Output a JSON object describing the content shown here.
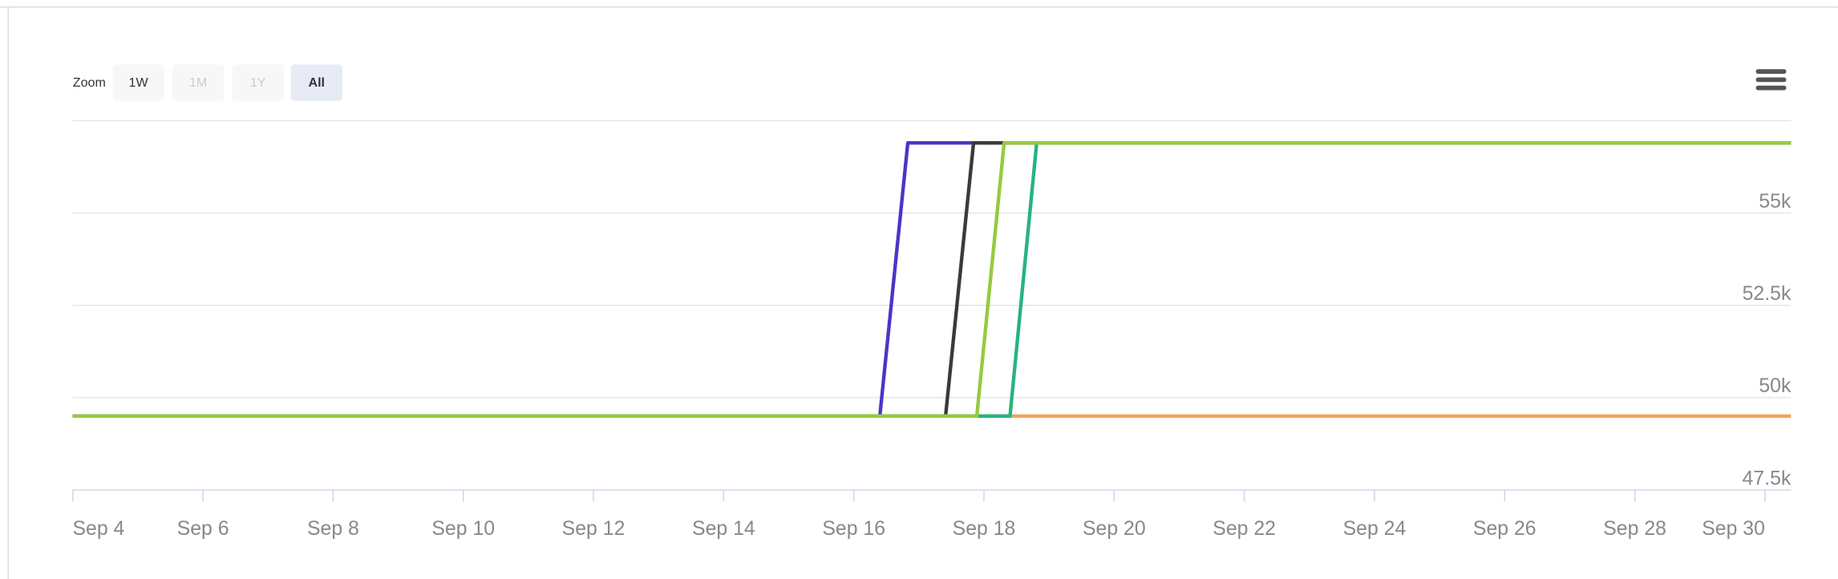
{
  "chart_data": {
    "type": "line",
    "zoom": {
      "label": "Zoom",
      "buttons": [
        "1W",
        "1M",
        "1Y",
        "All"
      ]
    },
    "xlim": [
      4,
      30.4
    ],
    "xticks": [
      {
        "value": 4,
        "label": "Sep 4"
      },
      {
        "value": 6,
        "label": "Sep 6"
      },
      {
        "value": 8,
        "label": "Sep 8"
      },
      {
        "value": 10,
        "label": "Sep 10"
      },
      {
        "value": 12,
        "label": "Sep 12"
      },
      {
        "value": 14,
        "label": "Sep 14"
      },
      {
        "value": 16,
        "label": "Sep 16"
      },
      {
        "value": 18,
        "label": "Sep 18"
      },
      {
        "value": 20,
        "label": "Sep 20"
      },
      {
        "value": 22,
        "label": "Sep 22"
      },
      {
        "value": 24,
        "label": "Sep 24"
      },
      {
        "value": 26,
        "label": "Sep 26"
      },
      {
        "value": 28,
        "label": "Sep 28"
      },
      {
        "value": 30,
        "label": "Sep 30"
      }
    ],
    "ylim": [
      47500,
      57500
    ],
    "yticks": [
      {
        "value": 47500,
        "label": "47.5k"
      },
      {
        "value": 50000,
        "label": "50k"
      },
      {
        "value": 52500,
        "label": "52.5k"
      },
      {
        "value": 55000,
        "label": "55k"
      }
    ],
    "grid": true,
    "series": [
      {
        "color": "#f2a45a",
        "x": [
          4,
          30.4
        ],
        "values": [
          49500,
          49500
        ]
      },
      {
        "color": "#4a35c8",
        "x": [
          4,
          16.4,
          16.83,
          30.4
        ],
        "values": [
          49500,
          49500,
          56900,
          56900
        ]
      },
      {
        "color": "#3a3a3e",
        "x": [
          4,
          17.41,
          17.84,
          30.4
        ],
        "values": [
          49500,
          49500,
          56900,
          56900
        ]
      },
      {
        "color": "#27b381",
        "x": [
          4,
          18.4,
          18.81,
          30.4
        ],
        "values": [
          49500,
          49500,
          56900,
          56900
        ]
      },
      {
        "color": "#97c93f",
        "x": [
          4,
          17.89,
          18.31,
          30.4
        ],
        "values": [
          49500,
          49500,
          56900,
          56900
        ]
      }
    ]
  }
}
